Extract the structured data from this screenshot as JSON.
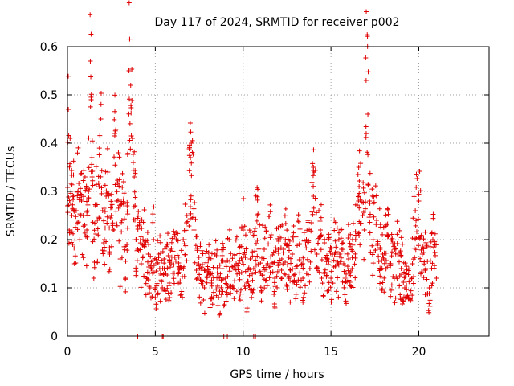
{
  "chart_data": {
    "type": "scatter",
    "title": "Day 117 of 2024, SRMTID for receiver p002",
    "xlabel": "GPS time / hours",
    "ylabel": "SRMTID / TECUs",
    "xlim": [
      0,
      24
    ],
    "ylim": [
      0,
      0.6
    ],
    "xticks": [
      0,
      5,
      10,
      15,
      20
    ],
    "xtick_labels": [
      "0",
      "5",
      "10",
      "15",
      "20"
    ],
    "yticks": [
      0,
      0.1,
      0.2,
      0.3,
      0.4,
      0.5,
      0.6
    ],
    "ytick_labels": [
      "0",
      "0.1",
      "0.2",
      "0.3",
      "0.4",
      "0.5",
      "0.6"
    ],
    "grid": true,
    "legend": "none",
    "marker": "+",
    "color": "#e00000",
    "series": [
      {
        "name": "SRMTID",
        "x": [
          0.0,
          0.05,
          0.1,
          0.15,
          0.2,
          0.25,
          0.3,
          0.35,
          0.4,
          0.5,
          0.6,
          0.7,
          0.8,
          0.9,
          1.0,
          1.1,
          1.2,
          1.3,
          1.35,
          1.4,
          1.5,
          1.6,
          1.7,
          1.8,
          1.9,
          2.0,
          2.1,
          2.2,
          2.3,
          2.4,
          2.5,
          2.6,
          2.7,
          2.8,
          2.9,
          3.0,
          3.1,
          3.2,
          3.3,
          3.4,
          3.5,
          3.6,
          3.7,
          3.8,
          3.85,
          3.9,
          4.0,
          4.1,
          4.2,
          4.3,
          4.4,
          4.5,
          4.6,
          4.7,
          4.8,
          4.9,
          5.0,
          5.1,
          5.2,
          5.3,
          5.4,
          5.5,
          5.6,
          5.7,
          5.8,
          5.9,
          6.0,
          6.2,
          6.4,
          6.6,
          6.8,
          7.0,
          7.05,
          7.2,
          7.4,
          7.6,
          7.8,
          8.0,
          8.2,
          8.4,
          8.6,
          8.8,
          9.0,
          9.2,
          9.4,
          9.6,
          9.8,
          10.0,
          10.2,
          10.4,
          10.6,
          10.8,
          11.0,
          11.2,
          11.4,
          11.6,
          11.8,
          12.0,
          12.2,
          12.4,
          12.6,
          12.8,
          13.0,
          13.2,
          13.4,
          13.6,
          13.8,
          14.0,
          14.2,
          14.4,
          14.6,
          14.8,
          15.0,
          15.2,
          15.4,
          15.6,
          15.8,
          16.0,
          16.2,
          16.4,
          16.6,
          16.8,
          16.9,
          17.0,
          17.1,
          17.2,
          17.4,
          17.6,
          17.8,
          18.0,
          18.2,
          18.4,
          18.6,
          18.8,
          19.0,
          19.2,
          19.4,
          19.6,
          19.8,
          20.0,
          20.2,
          20.4,
          20.6,
          20.8,
          21.0
        ],
        "y": [
          0.27,
          0.47,
          0.22,
          0.41,
          0.3,
          0.25,
          0.19,
          0.29,
          0.15,
          0.26,
          0.3,
          0.2,
          0.28,
          0.25,
          0.33,
          0.22,
          0.3,
          0.57,
          0.49,
          0.33,
          0.12,
          0.27,
          0.24,
          0.31,
          0.45,
          0.26,
          0.2,
          0.29,
          0.34,
          0.17,
          0.25,
          0.22,
          0.42,
          0.28,
          0.38,
          0.16,
          0.24,
          0.32,
          0.12,
          0.27,
          0.55,
          0.52,
          0.41,
          0.33,
          0.27,
          0.2,
          0.18,
          0.23,
          0.15,
          0.2,
          0.19,
          0.12,
          0.17,
          0.1,
          0.14,
          0.2,
          0.08,
          0.15,
          0.17,
          0.13,
          0.1,
          0.16,
          0.13,
          0.19,
          0.11,
          0.15,
          0.13,
          0.2,
          0.11,
          0.14,
          0.25,
          0.37,
          0.4,
          0.22,
          0.12,
          0.14,
          0.1,
          0.13,
          0.11,
          0.17,
          0.08,
          0.14,
          0.12,
          0.2,
          0.1,
          0.15,
          0.13,
          0.22,
          0.11,
          0.16,
          0.14,
          0.25,
          0.13,
          0.18,
          0.15,
          0.21,
          0.12,
          0.18,
          0.16,
          0.2,
          0.12,
          0.17,
          0.14,
          0.19,
          0.12,
          0.2,
          0.14,
          0.35,
          0.17,
          0.22,
          0.13,
          0.16,
          0.12,
          0.17,
          0.15,
          0.18,
          0.12,
          0.16,
          0.14,
          0.2,
          0.31,
          0.25,
          0.22,
          0.53,
          0.46,
          0.28,
          0.2,
          0.24,
          0.18,
          0.16,
          0.21,
          0.15,
          0.12,
          0.17,
          0.14,
          0.1,
          0.08,
          0.12,
          0.26,
          0.28,
          0.17,
          0.14,
          0.1,
          0.2,
          0.12
        ]
      }
    ],
    "zero_points_x": [
      4.0,
      5.4,
      5.45,
      8.8,
      8.9,
      9.1,
      10.6,
      10.7
    ]
  }
}
